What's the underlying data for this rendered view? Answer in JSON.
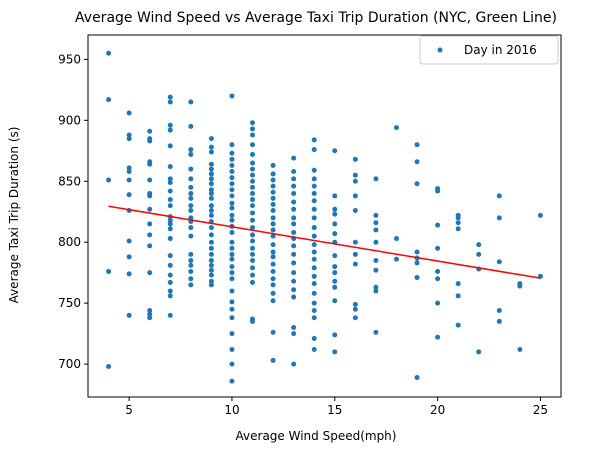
{
  "chart_data": {
    "type": "scatter",
    "title": "Average Wind Speed vs Average Taxi Trip Duration (NYC, Green Line)",
    "xlabel": "Average Wind Speed(mph)",
    "ylabel": "Average Taxi Trip Duration (s)",
    "xlim": [
      3,
      26
    ],
    "ylim": [
      673,
      970
    ],
    "xticks": [
      5,
      10,
      15,
      20,
      25
    ],
    "yticks": [
      700,
      750,
      800,
      850,
      900,
      950
    ],
    "grid": false,
    "legend": {
      "position": "top-right",
      "entries": [
        "Day in 2016"
      ]
    },
    "colors": {
      "points": "#1f77b4",
      "regression": "#ff0000"
    },
    "series": [
      {
        "name": "Day in 2016",
        "points": [
          [
            4,
            955
          ],
          [
            4,
            917
          ],
          [
            4,
            851
          ],
          [
            4,
            776
          ],
          [
            4,
            698
          ],
          [
            5,
            906
          ],
          [
            5,
            888
          ],
          [
            5,
            885
          ],
          [
            5,
            861
          ],
          [
            5,
            858
          ],
          [
            5,
            851
          ],
          [
            5,
            839
          ],
          [
            5,
            826
          ],
          [
            5,
            801
          ],
          [
            5,
            788
          ],
          [
            5,
            774
          ],
          [
            5,
            740
          ],
          [
            6,
            891
          ],
          [
            6,
            885
          ],
          [
            6,
            883
          ],
          [
            6,
            866
          ],
          [
            6,
            864
          ],
          [
            6,
            851
          ],
          [
            6,
            840
          ],
          [
            6,
            838
          ],
          [
            6,
            827
          ],
          [
            6,
            815
          ],
          [
            6,
            806
          ],
          [
            6,
            797
          ],
          [
            6,
            775
          ],
          [
            6,
            744
          ],
          [
            6,
            741
          ],
          [
            6,
            738
          ],
          [
            7,
            919
          ],
          [
            7,
            915
          ],
          [
            7,
            896
          ],
          [
            7,
            892
          ],
          [
            7,
            879
          ],
          [
            7,
            862
          ],
          [
            7,
            852
          ],
          [
            7,
            849
          ],
          [
            7,
            842
          ],
          [
            7,
            835
          ],
          [
            7,
            830
          ],
          [
            7,
            821
          ],
          [
            7,
            818
          ],
          [
            7,
            815
          ],
          [
            7,
            811
          ],
          [
            7,
            803
          ],
          [
            7,
            789
          ],
          [
            7,
            781
          ],
          [
            7,
            773
          ],
          [
            7,
            767
          ],
          [
            7,
            760
          ],
          [
            7,
            756
          ],
          [
            7,
            740
          ],
          [
            8,
            915
          ],
          [
            8,
            895
          ],
          [
            8,
            876
          ],
          [
            8,
            872
          ],
          [
            8,
            860
          ],
          [
            8,
            852
          ],
          [
            8,
            845
          ],
          [
            8,
            840
          ],
          [
            8,
            836
          ],
          [
            8,
            830
          ],
          [
            8,
            826
          ],
          [
            8,
            820
          ],
          [
            8,
            817
          ],
          [
            8,
            812
          ],
          [
            8,
            805
          ],
          [
            8,
            790
          ],
          [
            8,
            785
          ],
          [
            8,
            781
          ],
          [
            8,
            776
          ],
          [
            8,
            770
          ],
          [
            8,
            765
          ],
          [
            9,
            885
          ],
          [
            9,
            878
          ],
          [
            9,
            874
          ],
          [
            9,
            864
          ],
          [
            9,
            860
          ],
          [
            9,
            856
          ],
          [
            9,
            852
          ],
          [
            9,
            848
          ],
          [
            9,
            843
          ],
          [
            9,
            840
          ],
          [
            9,
            836
          ],
          [
            9,
            830
          ],
          [
            9,
            826
          ],
          [
            9,
            822
          ],
          [
            9,
            817
          ],
          [
            9,
            812
          ],
          [
            9,
            806
          ],
          [
            9,
            800
          ],
          [
            9,
            795
          ],
          [
            9,
            790
          ],
          [
            9,
            785
          ],
          [
            9,
            781
          ],
          [
            9,
            777
          ],
          [
            9,
            773
          ],
          [
            9,
            768
          ],
          [
            9,
            765
          ],
          [
            10,
            920
          ],
          [
            10,
            880
          ],
          [
            10,
            873
          ],
          [
            10,
            868
          ],
          [
            10,
            863
          ],
          [
            10,
            858
          ],
          [
            10,
            853
          ],
          [
            10,
            848
          ],
          [
            10,
            843
          ],
          [
            10,
            838
          ],
          [
            10,
            832
          ],
          [
            10,
            828
          ],
          [
            10,
            822
          ],
          [
            10,
            818
          ],
          [
            10,
            813
          ],
          [
            10,
            808
          ],
          [
            10,
            800
          ],
          [
            10,
            795
          ],
          [
            10,
            790
          ],
          [
            10,
            786
          ],
          [
            10,
            780
          ],
          [
            10,
            775
          ],
          [
            10,
            770
          ],
          [
            10,
            760
          ],
          [
            10,
            751
          ],
          [
            10,
            745
          ],
          [
            10,
            738
          ],
          [
            10,
            725
          ],
          [
            10,
            712
          ],
          [
            10,
            700
          ],
          [
            10,
            686
          ],
          [
            11,
            898
          ],
          [
            11,
            893
          ],
          [
            11,
            888
          ],
          [
            11,
            880
          ],
          [
            11,
            872
          ],
          [
            11,
            865
          ],
          [
            11,
            860
          ],
          [
            11,
            855
          ],
          [
            11,
            850
          ],
          [
            11,
            845
          ],
          [
            11,
            840
          ],
          [
            11,
            835
          ],
          [
            11,
            830
          ],
          [
            11,
            824
          ],
          [
            11,
            818
          ],
          [
            11,
            812
          ],
          [
            11,
            806
          ],
          [
            11,
            801
          ],
          [
            11,
            795
          ],
          [
            11,
            790
          ],
          [
            11,
            785
          ],
          [
            11,
            779
          ],
          [
            11,
            773
          ],
          [
            11,
            767
          ],
          [
            11,
            737
          ],
          [
            11,
            735
          ],
          [
            12,
            863
          ],
          [
            12,
            856
          ],
          [
            12,
            851
          ],
          [
            12,
            846
          ],
          [
            12,
            841
          ],
          [
            12,
            836
          ],
          [
            12,
            831
          ],
          [
            12,
            826
          ],
          [
            12,
            820
          ],
          [
            12,
            815
          ],
          [
            12,
            810
          ],
          [
            12,
            805
          ],
          [
            12,
            798
          ],
          [
            12,
            792
          ],
          [
            12,
            788
          ],
          [
            12,
            782
          ],
          [
            12,
            776
          ],
          [
            12,
            770
          ],
          [
            12,
            765
          ],
          [
            12,
            758
          ],
          [
            12,
            752
          ],
          [
            12,
            726
          ],
          [
            12,
            703
          ],
          [
            13,
            869
          ],
          [
            13,
            858
          ],
          [
            13,
            852
          ],
          [
            13,
            846
          ],
          [
            13,
            840
          ],
          [
            13,
            833
          ],
          [
            13,
            827
          ],
          [
            13,
            820
          ],
          [
            13,
            815
          ],
          [
            13,
            808
          ],
          [
            13,
            803
          ],
          [
            13,
            797
          ],
          [
            13,
            790
          ],
          [
            13,
            783
          ],
          [
            13,
            775
          ],
          [
            13,
            768
          ],
          [
            13,
            761
          ],
          [
            13,
            755
          ],
          [
            13,
            730
          ],
          [
            13,
            725
          ],
          [
            13,
            700
          ],
          [
            14,
            884
          ],
          [
            14,
            876
          ],
          [
            14,
            859
          ],
          [
            14,
            852
          ],
          [
            14,
            846
          ],
          [
            14,
            840
          ],
          [
            14,
            834
          ],
          [
            14,
            827
          ],
          [
            14,
            820
          ],
          [
            14,
            812
          ],
          [
            14,
            805
          ],
          [
            14,
            798
          ],
          [
            14,
            792
          ],
          [
            14,
            786
          ],
          [
            14,
            779
          ],
          [
            14,
            772
          ],
          [
            14,
            766
          ],
          [
            14,
            758
          ],
          [
            14,
            750
          ],
          [
            14,
            744
          ],
          [
            14,
            738
          ],
          [
            14,
            721
          ],
          [
            14,
            712
          ],
          [
            15,
            875
          ],
          [
            15,
            838
          ],
          [
            15,
            827
          ],
          [
            15,
            823
          ],
          [
            15,
            815
          ],
          [
            15,
            807
          ],
          [
            15,
            800
          ],
          [
            15,
            789
          ],
          [
            15,
            780
          ],
          [
            15,
            775
          ],
          [
            15,
            768
          ],
          [
            15,
            763
          ],
          [
            15,
            752
          ],
          [
            15,
            724
          ],
          [
            15,
            710
          ],
          [
            16,
            868
          ],
          [
            16,
            855
          ],
          [
            16,
            850
          ],
          [
            16,
            838
          ],
          [
            16,
            826
          ],
          [
            16,
            800
          ],
          [
            16,
            790
          ],
          [
            16,
            782
          ],
          [
            16,
            749
          ],
          [
            16,
            745
          ],
          [
            16,
            738
          ],
          [
            17,
            852
          ],
          [
            17,
            822
          ],
          [
            17,
            816
          ],
          [
            17,
            810
          ],
          [
            17,
            800
          ],
          [
            17,
            785
          ],
          [
            17,
            777
          ],
          [
            17,
            763
          ],
          [
            17,
            760
          ],
          [
            17,
            726
          ],
          [
            18,
            894
          ],
          [
            18,
            803
          ],
          [
            18,
            786
          ],
          [
            19,
            880
          ],
          [
            19,
            866
          ],
          [
            19,
            848
          ],
          [
            19,
            792
          ],
          [
            19,
            787
          ],
          [
            19,
            783
          ],
          [
            19,
            771
          ],
          [
            19,
            689
          ],
          [
            20,
            844
          ],
          [
            20,
            842
          ],
          [
            20,
            814
          ],
          [
            20,
            795
          ],
          [
            20,
            776
          ],
          [
            20,
            770
          ],
          [
            20,
            750
          ],
          [
            20,
            722
          ],
          [
            21,
            822
          ],
          [
            21,
            820
          ],
          [
            21,
            816
          ],
          [
            21,
            811
          ],
          [
            21,
            766
          ],
          [
            21,
            756
          ],
          [
            21,
            732
          ],
          [
            22,
            798
          ],
          [
            22,
            790
          ],
          [
            22,
            778
          ],
          [
            22,
            710
          ],
          [
            23,
            838
          ],
          [
            23,
            820
          ],
          [
            23,
            784
          ],
          [
            23,
            744
          ],
          [
            23,
            735
          ],
          [
            24,
            766
          ],
          [
            24,
            764
          ],
          [
            24,
            712
          ],
          [
            25,
            822
          ],
          [
            25,
            772
          ]
        ]
      }
    ],
    "regression": {
      "x": [
        4,
        25
      ],
      "y": [
        829.5,
        770.5
      ]
    }
  }
}
